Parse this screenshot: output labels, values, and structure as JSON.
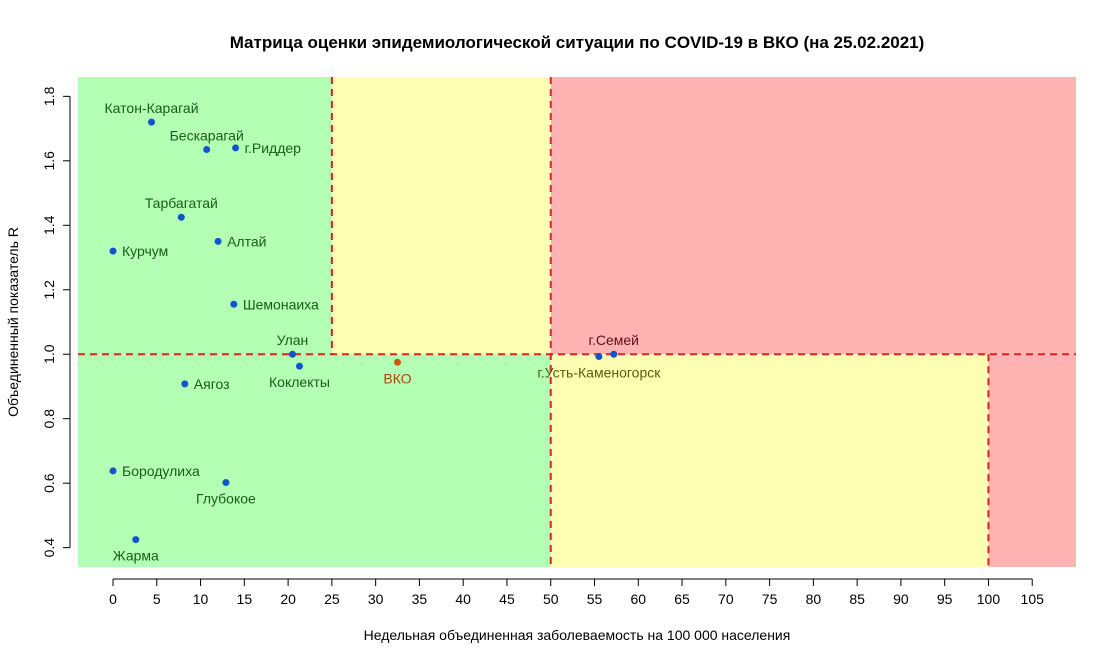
{
  "chart_data": {
    "type": "scatter",
    "title": "Матрица оценки эпидемиологической ситуации по COVID-19 в ВКО (на 25.02.2021)",
    "xlabel": "Недельная объединенная заболеваемость на 100 000 населения",
    "ylabel": "Объединенный показатель R",
    "xlim": [
      -4,
      110
    ],
    "ylim": [
      0.34,
      1.86
    ],
    "x_ticks": [
      0,
      5,
      10,
      15,
      20,
      25,
      30,
      35,
      40,
      45,
      50,
      55,
      60,
      65,
      70,
      75,
      80,
      85,
      90,
      95,
      100,
      105
    ],
    "y_ticks": [
      0.4,
      0.6,
      0.8,
      1.0,
      1.2,
      1.4,
      1.6,
      1.8
    ],
    "y_tick_labels": [
      "0.4",
      "0.6",
      "0.8",
      "1.0",
      "1.2",
      "1.4",
      "1.6",
      "1.8"
    ],
    "grid": false,
    "zones": [
      {
        "x": [
          -4,
          25
        ],
        "y": [
          1.0,
          1.86
        ],
        "color": "#b3ffb3"
      },
      {
        "x": [
          25,
          50
        ],
        "y": [
          1.0,
          1.86
        ],
        "color": "#ffffb3"
      },
      {
        "x": [
          50,
          110
        ],
        "y": [
          1.0,
          1.86
        ],
        "color": "#ffb3b3"
      },
      {
        "x": [
          -4,
          50
        ],
        "y": [
          0.34,
          1.0
        ],
        "color": "#b3ffb3"
      },
      {
        "x": [
          50,
          100
        ],
        "y": [
          0.34,
          1.0
        ],
        "color": "#ffffb3"
      },
      {
        "x": [
          100,
          110
        ],
        "y": [
          0.34,
          1.0
        ],
        "color": "#ffb3b3"
      }
    ],
    "threshold_lines": [
      {
        "axis": "x",
        "value": 25,
        "y": [
          1.0,
          1.86
        ]
      },
      {
        "axis": "x",
        "value": 50,
        "y": [
          0.34,
          1.86
        ]
      },
      {
        "axis": "x",
        "value": 100,
        "y": [
          0.34,
          1.0
        ]
      },
      {
        "axis": "y",
        "value": 1.0,
        "x": [
          -4,
          110
        ]
      }
    ],
    "threshold_color": "#dd2222",
    "points": [
      {
        "label": "Катон-Карагай",
        "x": 4.4,
        "y": 1.72,
        "label_pos": "top",
        "point_color": "#1155cc",
        "label_color": "#1a5c1a"
      },
      {
        "label": "Бескарагай",
        "x": 10.7,
        "y": 1.635,
        "label_pos": "top",
        "point_color": "#1155cc",
        "label_color": "#1a5c1a"
      },
      {
        "label": "г.Риддер",
        "x": 14.0,
        "y": 1.64,
        "label_pos": "right",
        "point_color": "#1155cc",
        "label_color": "#1a5c1a"
      },
      {
        "label": "Тарбагатай",
        "x": 7.8,
        "y": 1.425,
        "label_pos": "top",
        "point_color": "#1155cc",
        "label_color": "#1a5c1a"
      },
      {
        "label": "Алтай",
        "x": 12.0,
        "y": 1.35,
        "label_pos": "right",
        "point_color": "#1155cc",
        "label_color": "#1a5c1a"
      },
      {
        "label": "Курчум",
        "x": 0.0,
        "y": 1.32,
        "label_pos": "right",
        "point_color": "#1155cc",
        "label_color": "#1a5c1a"
      },
      {
        "label": "Шемонаиха",
        "x": 13.8,
        "y": 1.155,
        "label_pos": "right",
        "point_color": "#1155cc",
        "label_color": "#1a5c1a"
      },
      {
        "label": "Улан",
        "x": 20.5,
        "y": 1.0,
        "label_pos": "top",
        "point_color": "#1155cc",
        "label_color": "#1a5c1a"
      },
      {
        "label": "Коклекты",
        "x": 21.3,
        "y": 0.963,
        "label_pos": "bottom",
        "point_color": "#1155cc",
        "label_color": "#1a5c1a"
      },
      {
        "label": "Аягоз",
        "x": 8.2,
        "y": 0.908,
        "label_pos": "right",
        "point_color": "#1155cc",
        "label_color": "#1a5c1a"
      },
      {
        "label": "ВКО",
        "x": 32.5,
        "y": 0.975,
        "label_pos": "bottom",
        "point_color": "#cc5511",
        "label_color": "#b34700"
      },
      {
        "label": "г.Семей",
        "x": 57.2,
        "y": 1.0,
        "label_pos": "top",
        "point_color": "#1155cc",
        "label_color": "#5c0f1a"
      },
      {
        "label": "г.Усть-Каменогорск",
        "x": 55.5,
        "y": 0.993,
        "label_pos": "bottom",
        "point_color": "#1155cc",
        "label_color": "#5c5c0f"
      },
      {
        "label": "Бородулиха",
        "x": 0.0,
        "y": 0.638,
        "label_pos": "right",
        "point_color": "#1155cc",
        "label_color": "#1a5c1a"
      },
      {
        "label": "Глубокое",
        "x": 12.9,
        "y": 0.602,
        "label_pos": "bottom",
        "point_color": "#1155cc",
        "label_color": "#1a5c1a"
      },
      {
        "label": "Жарма",
        "x": 2.6,
        "y": 0.425,
        "label_pos": "bottom",
        "point_color": "#1155cc",
        "label_color": "#1a5c1a"
      }
    ]
  }
}
